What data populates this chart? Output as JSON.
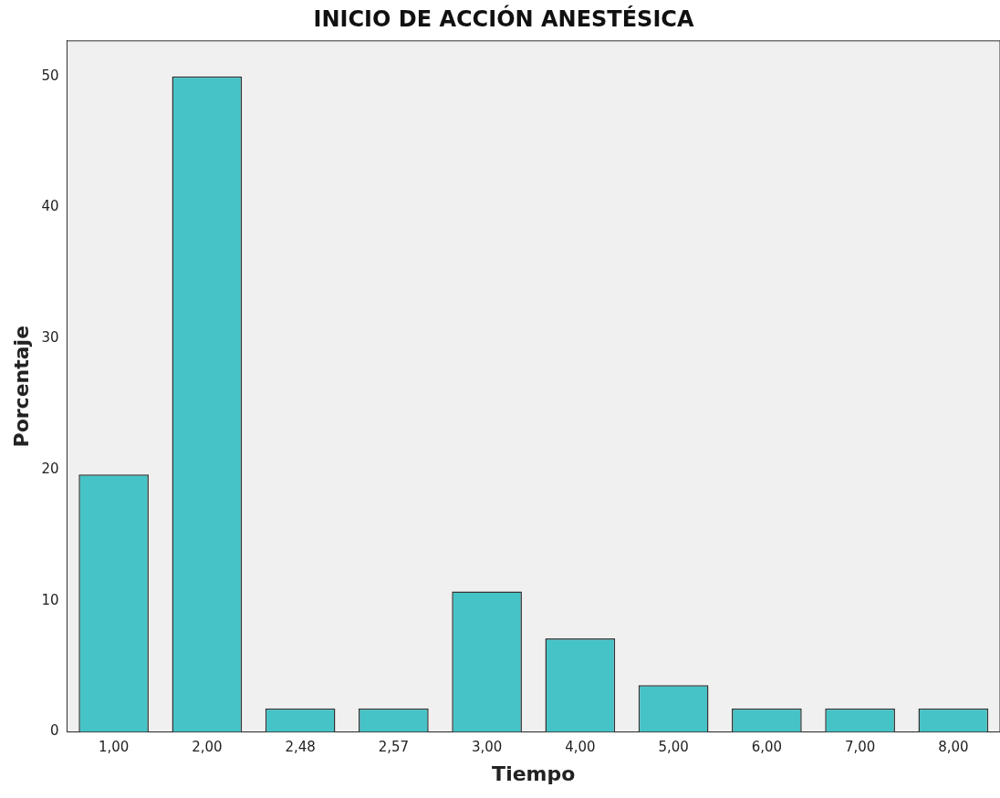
{
  "chart_data": {
    "type": "bar",
    "title": "INICIO DE ACCIÓN ANESTÉSICA",
    "xlabel": "Tiempo",
    "ylabel": "Porcentaje",
    "categories": [
      "1,00",
      "2,00",
      "2,48",
      "2,57",
      "3,00",
      "4,00",
      "5,00",
      "6,00",
      "7,00",
      "8,00"
    ],
    "values": [
      19.64,
      50,
      1.79,
      1.79,
      10.71,
      7.14,
      3.57,
      1.79,
      1.79,
      1.79
    ],
    "color": "#46c3c6",
    "ylim": [
      0,
      52.7
    ],
    "yticks": [
      0,
      10,
      20,
      30,
      40,
      50
    ],
    "grid": false,
    "legend": false
  }
}
